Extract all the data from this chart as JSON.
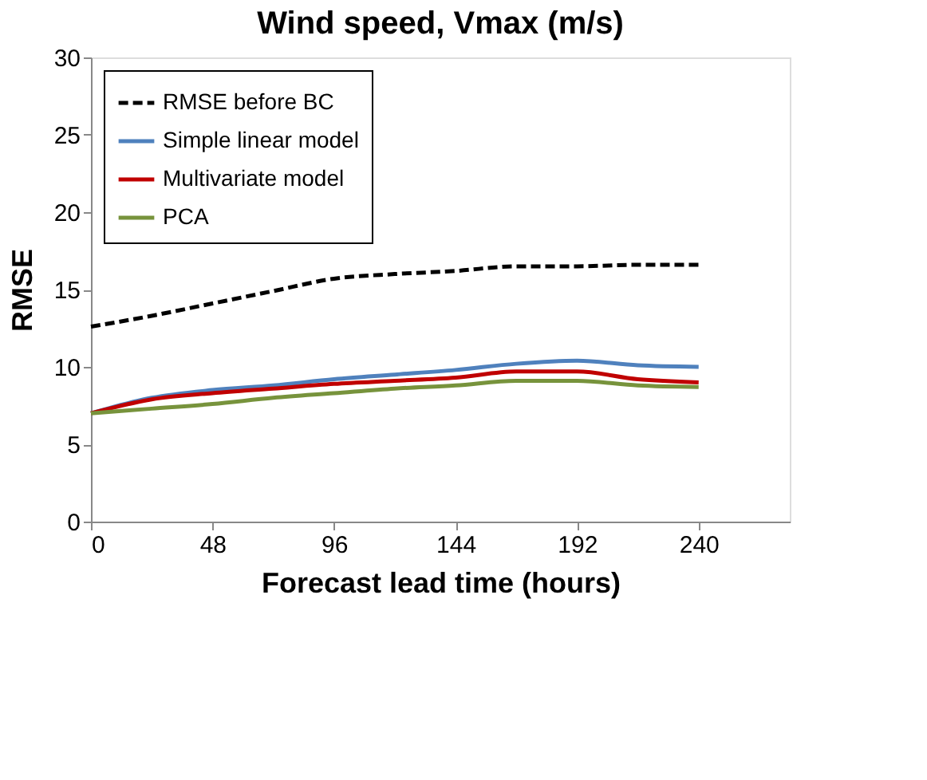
{
  "chart_data": {
    "type": "line",
    "title": "Wind speed, Vmax (m/s)",
    "xlabel": "Forecast lead time (hours)",
    "ylabel": "RMSE",
    "x": [
      0,
      24,
      48,
      72,
      96,
      120,
      144,
      168,
      192,
      216,
      240
    ],
    "series": [
      {
        "name": "RMSE before BC",
        "color": "#000000",
        "line_style": "dashed",
        "values": [
          12.6,
          13.3,
          14.1,
          14.9,
          15.7,
          16.0,
          16.2,
          16.5,
          16.5,
          16.6,
          16.6
        ]
      },
      {
        "name": "Simple linear model",
        "color": "#4f81bd",
        "values": [
          7.0,
          8.0,
          8.5,
          8.8,
          9.2,
          9.5,
          9.8,
          10.2,
          10.4,
          10.1,
          10.0
        ]
      },
      {
        "name": "Multivariate model",
        "color": "#c00000",
        "values": [
          7.0,
          7.9,
          8.3,
          8.6,
          8.9,
          9.1,
          9.3,
          9.7,
          9.7,
          9.2,
          9.0
        ]
      },
      {
        "name": "PCA",
        "color": "#77933c",
        "values": [
          7.0,
          7.3,
          7.6,
          8.0,
          8.3,
          8.6,
          8.8,
          9.1,
          9.1,
          8.8,
          8.7
        ]
      }
    ],
    "xlim": [
      0,
      276
    ],
    "xticks": [
      0,
      48,
      96,
      144,
      192,
      240
    ],
    "ylim": [
      0,
      30
    ],
    "yticks": [
      0,
      5,
      10,
      15,
      20,
      25,
      30
    ],
    "grid": false,
    "legend": "top left",
    "line_style": "solid",
    "marker": "none"
  }
}
